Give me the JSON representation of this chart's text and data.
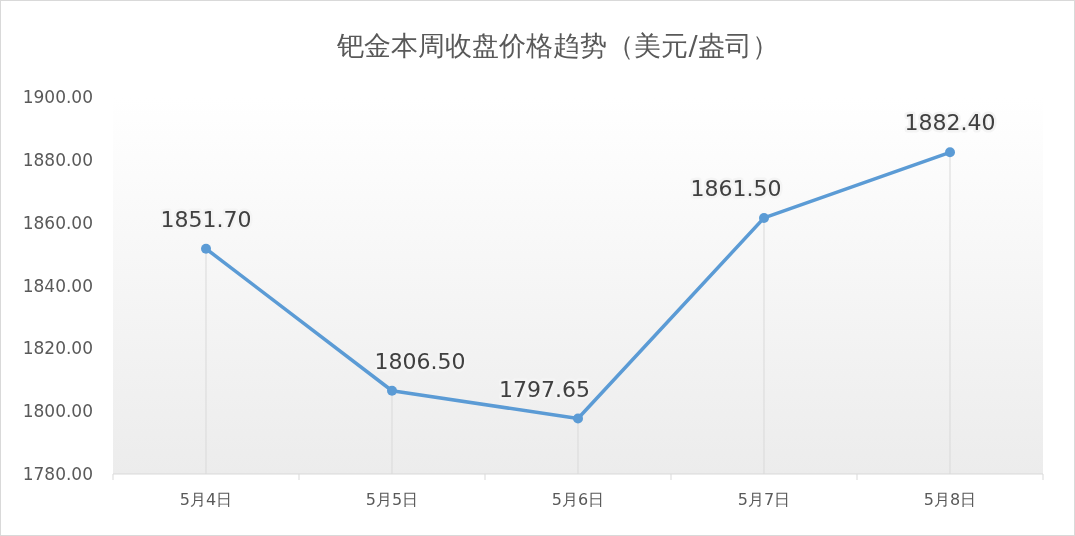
{
  "chart_data": {
    "type": "line",
    "title": "钯金本周收盘价格趋势（美元/盎司）",
    "categories": [
      "5月4日",
      "5月5日",
      "5月6日",
      "5月7日",
      "5月8日"
    ],
    "series": [
      {
        "color": "#5b9bd5",
        "values": [
          1851.7,
          1806.5,
          1797.65,
          1861.5,
          1882.4
        ],
        "value_labels": [
          "1851.70",
          "1806.50",
          "1797.65",
          "1861.50",
          "1882.40"
        ]
      }
    ],
    "ylim": [
      1780,
      1900
    ],
    "yticks": [
      {
        "value": 1780,
        "label": "1780.00"
      },
      {
        "value": 1800,
        "label": "1800.00"
      },
      {
        "value": 1820,
        "label": "1820.00"
      },
      {
        "value": 1840,
        "label": "1840.00"
      },
      {
        "value": 1860,
        "label": "1860.00"
      },
      {
        "value": 1880,
        "label": "1880.00"
      },
      {
        "value": 1900,
        "label": "1900.00"
      }
    ],
    "grid": "x",
    "marker": "circle",
    "line_style": "solid"
  }
}
